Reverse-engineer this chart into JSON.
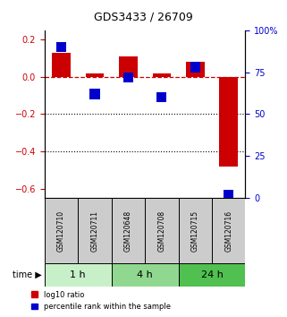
{
  "title": "GDS3433 / 26709",
  "samples": [
    "GSM120710",
    "GSM120711",
    "GSM120648",
    "GSM120708",
    "GSM120715",
    "GSM120716"
  ],
  "log10_ratio": [
    0.13,
    0.02,
    0.11,
    0.02,
    0.08,
    -0.48
  ],
  "percentile_rank": [
    90,
    62,
    72,
    60,
    78,
    2
  ],
  "time_groups": [
    {
      "label": "1 h",
      "samples": [
        0,
        1
      ],
      "color": "#c8f0c8"
    },
    {
      "label": "4 h",
      "samples": [
        2,
        3
      ],
      "color": "#90d890"
    },
    {
      "label": "24 h",
      "samples": [
        4,
        5
      ],
      "color": "#50c050"
    }
  ],
  "ylim_left": [
    -0.65,
    0.25
  ],
  "ylim_right": [
    0,
    100
  ],
  "red_color": "#cc0000",
  "blue_color": "#0000cc",
  "dashed_line_color": "#cc0000",
  "dotted_line_color": "#000000",
  "yticks_left": [
    -0.6,
    -0.4,
    -0.2,
    0.0,
    0.2
  ],
  "yticks_right": [
    0,
    25,
    50,
    75,
    100
  ],
  "ytick_labels_right": [
    "0",
    "25",
    "50",
    "75",
    "100%"
  ],
  "background_color": "#ffffff",
  "sample_box_color": "#cccccc",
  "figsize": [
    3.21,
    3.54
  ],
  "dpi": 100
}
